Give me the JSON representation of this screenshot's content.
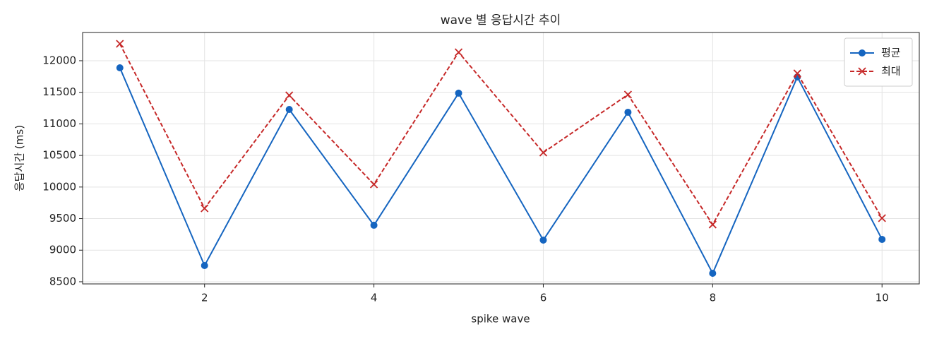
{
  "chart_data": {
    "type": "line",
    "title": "wave 별 응답시간 추이",
    "x_label": "spike wave",
    "y_label": "응답시간 (ms)",
    "x": [
      1,
      2,
      3,
      4,
      5,
      6,
      7,
      8,
      9,
      10
    ],
    "series": [
      {
        "name": "평균",
        "color": "#1565c0",
        "marker": "circle",
        "dash": false,
        "values": [
          11888,
          8757,
          11228,
          9395,
          11486,
          9160,
          11184,
          8634,
          11743,
          9171
        ]
      },
      {
        "name": "최대",
        "color": "#c62828",
        "marker": "x",
        "dash": true,
        "values": [
          12268,
          9663,
          11452,
          10043,
          12134,
          10546,
          11463,
          9406,
          11799,
          9507
        ]
      }
    ],
    "xlim": [
      0.56,
      10.44
    ],
    "ylim": [
      8466,
      12447
    ],
    "xticks": [
      2,
      4,
      6,
      8,
      10
    ],
    "yticks": [
      8500,
      9000,
      9500,
      10000,
      10500,
      11000,
      11500,
      12000
    ],
    "grid": true,
    "legend": "upper right"
  }
}
